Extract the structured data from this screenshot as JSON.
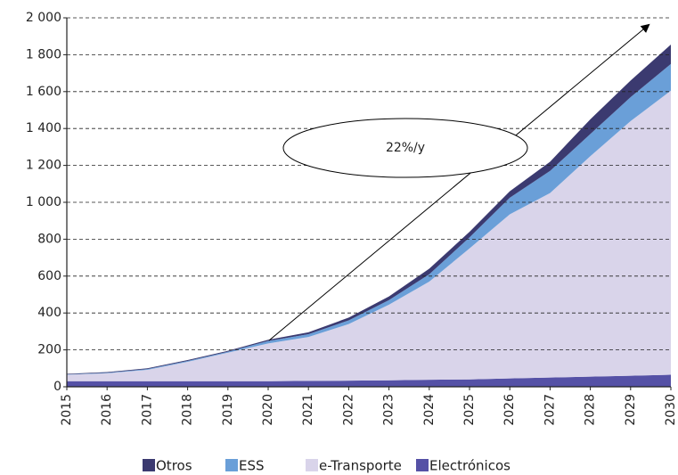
{
  "chart_data": {
    "type": "area",
    "stacked": true,
    "categories": [
      "2015",
      "2016",
      "2017",
      "2018",
      "2019",
      "2020",
      "2021",
      "2022",
      "2023",
      "2024",
      "2025",
      "2026",
      "2027",
      "2028",
      "2029",
      "2030"
    ],
    "series": [
      {
        "name": "Otros",
        "color": "#3b3a70",
        "values": [
          3,
          4,
          4,
          5,
          5,
          7,
          10,
          15,
          20,
          30,
          30,
          35,
          50,
          80,
          90,
          105
        ]
      },
      {
        "name": "ESS",
        "color": "#6a9fd8",
        "values": [
          2,
          3,
          4,
          5,
          5,
          13,
          15,
          20,
          25,
          40,
          60,
          90,
          120,
          120,
          130,
          145
        ]
      },
      {
        "name": "e-Transporte",
        "color": "#d9d4ea",
        "values": [
          35,
          43,
          62,
          105,
          155,
          205,
          238,
          307,
          410,
          532,
          710,
          890,
          1000,
          1195,
          1380,
          1540
        ]
      },
      {
        "name": "Electrónicos",
        "color": "#5551a6",
        "values": [
          30,
          30,
          30,
          30,
          30,
          30,
          32,
          33,
          35,
          38,
          40,
          45,
          50,
          55,
          60,
          65
        ]
      }
    ],
    "ylim": [
      0,
      2000
    ],
    "yticks": [
      0,
      200,
      400,
      600,
      800,
      {
        "value": 1000,
        "label": "1 000"
      },
      {
        "value": 1200,
        "label": "1 200"
      },
      {
        "value": 1400,
        "label": "1 400"
      },
      {
        "value": 1600,
        "label": "1 600"
      },
      {
        "value": 1800,
        "label": "1 800"
      },
      {
        "value": 2000,
        "label": "2 000"
      }
    ],
    "grid": true,
    "annotation": "22%/y",
    "legend": "bottom"
  }
}
